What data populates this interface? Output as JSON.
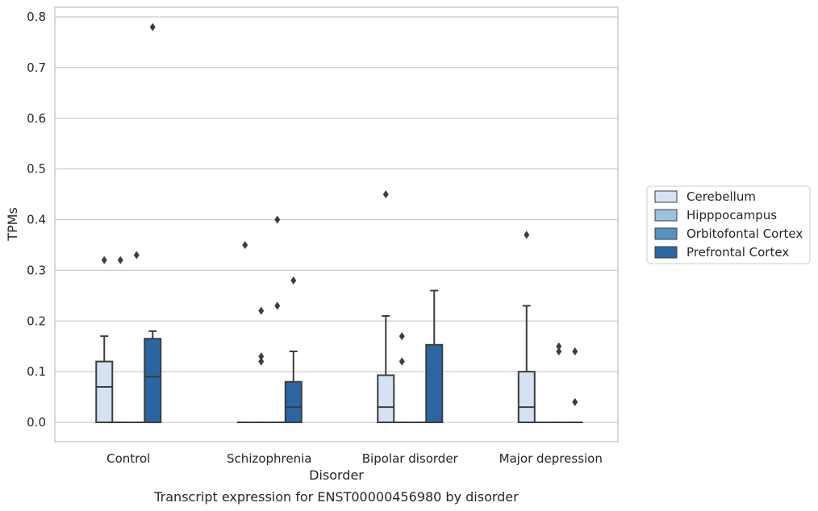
{
  "chart_data": {
    "type": "box",
    "title": "",
    "caption": "Transcript expression for ENST00000456980 by disorder",
    "xlabel": "Disorder",
    "ylabel": "TPMs",
    "ylim": [
      -0.04,
      0.82
    ],
    "yticks": [
      "0.0",
      "0.1",
      "0.2",
      "0.3",
      "0.4",
      "0.5",
      "0.6",
      "0.7",
      "0.8"
    ],
    "grid": true,
    "legend_position": "outside-right",
    "categories": [
      "Control",
      "Schizophrenia",
      "Bipolar disorder",
      "Major depression"
    ],
    "series": [
      {
        "name": "Cerebellum",
        "color": "#d4e2f1",
        "boxes": [
          {
            "q1": 0,
            "median": 0.07,
            "q3": 0.12,
            "whisker_low": 0,
            "whisker_high": 0.17,
            "outliers": [
              0.32
            ]
          },
          {
            "q1": 0,
            "median": 0,
            "q3": 0,
            "whisker_low": 0,
            "whisker_high": 0,
            "outliers": [
              0.35
            ]
          },
          {
            "q1": 0,
            "median": 0.03,
            "q3": 0.093,
            "whisker_low": 0,
            "whisker_high": 0.21,
            "outliers": [
              0.45
            ]
          },
          {
            "q1": 0,
            "median": 0.03,
            "q3": 0.1,
            "whisker_low": 0,
            "whisker_high": 0.23,
            "outliers": [
              0.37
            ]
          }
        ]
      },
      {
        "name": "Hipppocampus",
        "color": "#9ac2db",
        "boxes": [
          {
            "q1": 0,
            "median": 0,
            "q3": 0,
            "whisker_low": 0,
            "whisker_high": 0,
            "outliers": [
              0.32
            ]
          },
          {
            "q1": 0,
            "median": 0,
            "q3": 0,
            "whisker_low": 0,
            "whisker_high": 0,
            "outliers": [
              0.22,
              0.13,
              0.12
            ]
          },
          {
            "q1": 0,
            "median": 0,
            "q3": 0,
            "whisker_low": 0,
            "whisker_high": 0,
            "outliers": [
              0.17,
              0.12
            ]
          },
          {
            "q1": 0,
            "median": 0,
            "q3": 0,
            "whisker_low": 0,
            "whisker_high": 0,
            "outliers": []
          }
        ]
      },
      {
        "name": "Orbitofontal Cortex",
        "color": "#5693c1",
        "boxes": [
          {
            "q1": 0,
            "median": 0,
            "q3": 0,
            "whisker_low": 0,
            "whisker_high": 0,
            "outliers": [
              0.33
            ]
          },
          {
            "q1": 0,
            "median": 0,
            "q3": 0,
            "whisker_low": 0,
            "whisker_high": 0,
            "outliers": [
              0.4,
              0.23
            ]
          },
          {
            "q1": 0,
            "median": 0,
            "q3": 0,
            "whisker_low": 0,
            "whisker_high": 0,
            "outliers": []
          },
          {
            "q1": 0,
            "median": 0,
            "q3": 0,
            "whisker_low": 0,
            "whisker_high": 0,
            "outliers": [
              0.15,
              0.14
            ]
          }
        ]
      },
      {
        "name": "Prefrontal Cortex",
        "color": "#2a67a2",
        "boxes": [
          {
            "q1": 0,
            "median": 0.09,
            "q3": 0.165,
            "whisker_low": 0,
            "whisker_high": 0.18,
            "outliers": [
              0.78
            ]
          },
          {
            "q1": 0,
            "median": 0.03,
            "q3": 0.08,
            "whisker_low": 0,
            "whisker_high": 0.14,
            "outliers": [
              0.28
            ]
          },
          {
            "q1": 0,
            "median": 0,
            "q3": 0.153,
            "whisker_low": 0,
            "whisker_high": 0.26,
            "outliers": []
          },
          {
            "q1": 0,
            "median": 0,
            "q3": 0,
            "whisker_low": 0,
            "whisker_high": 0,
            "outliers": [
              0.14,
              0.04
            ]
          }
        ]
      }
    ]
  }
}
